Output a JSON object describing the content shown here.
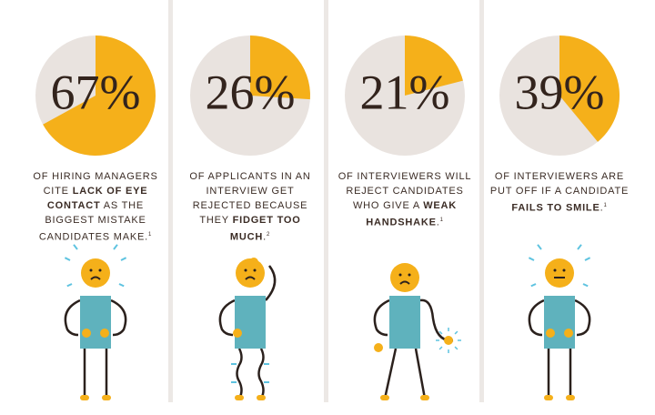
{
  "chart_data": [
    {
      "type": "pie",
      "values": [
        67
      ],
      "value_labels": [
        "67%"
      ],
      "color": "#f5b01a",
      "caption": [
        {
          "text": "OF HIRING MANAGERS CITE "
        },
        {
          "text": "LACK OF EYE CONTACT",
          "bold": true
        },
        {
          "text": " AS THE BIGGEST MISTAKE CANDIDATES MAKE."
        }
      ],
      "footnote": "1"
    },
    {
      "type": "pie",
      "values": [
        26
      ],
      "value_labels": [
        "26%"
      ],
      "color": "#f5b01a",
      "caption": [
        {
          "text": "OF APPLICANTS IN AN INTERVIEW GET REJECTED BECAUSE THEY "
        },
        {
          "text": "FIDGET TOO MUCH",
          "bold": true
        },
        {
          "text": "."
        }
      ],
      "footnote": "2"
    },
    {
      "type": "pie",
      "values": [
        21
      ],
      "value_labels": [
        "21%"
      ],
      "color": "#f5b01a",
      "caption": [
        {
          "text": "OF INTERVIEWERS WILL REJECT CANDIDATES WHO GIVE A "
        },
        {
          "text": "WEAK HANDSHAKE",
          "bold": true
        },
        {
          "text": "."
        }
      ],
      "footnote": "1"
    },
    {
      "type": "pie",
      "values": [
        39
      ],
      "value_labels": [
        "39%"
      ],
      "color": "#f5b01a",
      "caption": [
        {
          "text": "OF INTERVIEWERS ARE PUT OFF IF A CANDIDATE "
        },
        {
          "text": "FAILS TO SMILE",
          "bold": true
        },
        {
          "text": "."
        }
      ],
      "footnote": "1"
    }
  ]
}
